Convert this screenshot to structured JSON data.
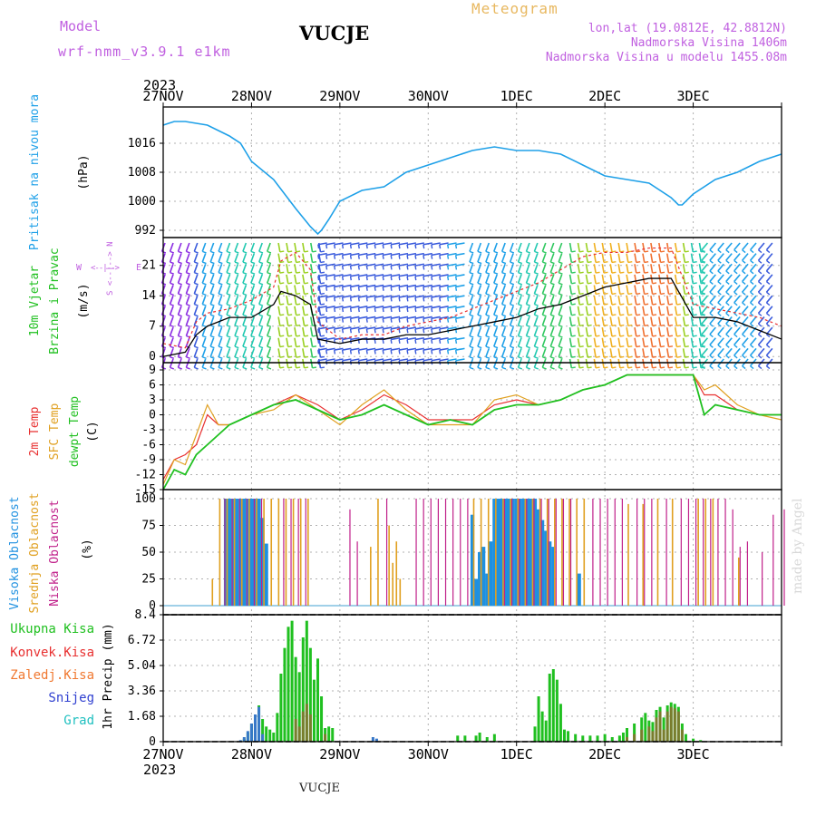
{
  "header": {
    "model_label": "Model",
    "model_name": "wrf-nmm_v3.9.1 e1km",
    "station": "VUCJE",
    "meteogram": "Meteogram",
    "lonlat": "lon,lat (19.0812E, 42.8812N)",
    "elev": "Nadmorska Visina 1406m",
    "elev_model": "Nadmorska Visina u modelu 1455.08m",
    "footer_station": "VUCJE",
    "watermark": "made by Angel"
  },
  "colors": {
    "model": "#c060e0",
    "meteogram": "#e8b860",
    "pressure": "#1ea0e8",
    "temp2m": "#e83030",
    "sfc": "#e0a020",
    "dew": "#20c020",
    "high_cloud": "#1e90e0",
    "mid_cloud": "#e0a020",
    "low_cloud": "#c0208a",
    "precip": "#20c020",
    "conv": "#e83030",
    "frozen": "#f07830",
    "snow": "#3040d0",
    "graupel": "#20c0c0"
  },
  "chart_data": [
    {
      "id": "pressure",
      "type": "line",
      "ylabel_lines": [
        "Pritisak na nivou mora"
      ],
      "unit": "(hPa)",
      "ylim": [
        990,
        1026
      ],
      "yticks": [
        "1016",
        "1008",
        "1000",
        "992"
      ],
      "year_top": "2023",
      "xticks_top": [
        "27NOV",
        "28NOV",
        "29NOV",
        "30NOV",
        "1DEC",
        "2DEC",
        "3DEC"
      ],
      "x_hours": [
        0,
        3,
        6,
        12,
        18,
        21,
        24,
        30,
        36,
        40,
        42,
        43,
        45,
        48,
        54,
        60,
        66,
        72,
        78,
        84,
        90,
        96,
        102,
        108,
        114,
        120,
        126,
        132,
        138,
        140,
        141,
        144,
        150,
        156,
        162,
        168
      ],
      "values": [
        1021,
        1022,
        1022,
        1021,
        1018,
        1016,
        1011,
        1006,
        998,
        993,
        991,
        992,
        995,
        1000,
        1003,
        1004,
        1008,
        1010,
        1012,
        1014,
        1015,
        1014,
        1014,
        1013,
        1010,
        1007,
        1006,
        1005,
        1001,
        999,
        999,
        1002,
        1006,
        1008,
        1011,
        1013
      ]
    },
    {
      "id": "wind",
      "type": "line",
      "ylabel_lines": [
        "10m Vjetar",
        "Brzina i Pravac"
      ],
      "unit": "(m/s)",
      "ylim": [
        -1,
        27
      ],
      "yticks": [
        "21",
        "14",
        "7",
        "0"
      ],
      "legend_glyphs": [
        "W",
        "<--|-->",
        "E",
        "S <--|--> N"
      ],
      "x_hours": [
        0,
        6,
        9,
        12,
        18,
        24,
        30,
        32,
        36,
        40,
        42,
        48,
        54,
        60,
        66,
        72,
        78,
        84,
        90,
        96,
        102,
        108,
        114,
        120,
        126,
        132,
        138,
        144,
        150,
        156,
        162,
        168
      ],
      "speed": [
        0,
        1,
        5,
        7,
        9,
        9,
        12,
        15,
        14,
        12,
        4,
        3,
        4,
        4,
        5,
        5,
        6,
        7,
        8,
        9,
        11,
        12,
        14,
        16,
        17,
        18,
        18,
        9,
        9,
        8,
        6,
        4
      ],
      "gust": [
        3,
        2,
        8,
        10,
        11,
        13,
        16,
        22,
        24,
        20,
        8,
        4,
        5,
        5,
        7,
        8,
        9,
        11,
        13,
        15,
        17,
        20,
        23,
        24,
        24,
        25,
        25,
        12,
        11,
        10,
        9,
        7
      ]
    },
    {
      "id": "temperature",
      "type": "line",
      "ylabel_lines": [
        "2m Temp",
        "SFC Temp",
        "dewpt Temp"
      ],
      "unit": "(C)",
      "ylim": [
        -15,
        9
      ],
      "yticks": [
        "9",
        "6",
        "3",
        "0",
        "-3",
        "-6",
        "-9",
        "-12",
        "-15"
      ],
      "x_hours": [
        0,
        3,
        6,
        9,
        12,
        15,
        18,
        21,
        24,
        30,
        36,
        42,
        48,
        54,
        60,
        66,
        72,
        78,
        84,
        90,
        96,
        102,
        108,
        114,
        120,
        126,
        132,
        138,
        144,
        147,
        150,
        156,
        162,
        168
      ],
      "series": [
        {
          "name": "2m Temp",
          "values": [
            -13,
            -9,
            -8,
            -6,
            0,
            -2,
            -2,
            -1,
            0,
            2,
            4,
            2,
            -1,
            1,
            4,
            2,
            -1,
            -1,
            -1,
            2,
            3,
            2,
            3,
            5,
            6,
            8,
            8,
            8,
            8,
            4,
            4,
            1,
            0,
            0
          ]
        },
        {
          "name": "SFC Temp",
          "values": [
            -14,
            -9,
            -10,
            -4,
            2,
            -2,
            -2,
            -1,
            0,
            1,
            4,
            1,
            -2,
            2,
            5,
            1,
            -2,
            -2,
            -2,
            3,
            4,
            2,
            3,
            5,
            6,
            8,
            8,
            8,
            8,
            5,
            6,
            2,
            0,
            -1
          ]
        },
        {
          "name": "dewpt Temp",
          "values": [
            -15,
            -11,
            -12,
            -8,
            -6,
            -4,
            -2,
            -1,
            0,
            2,
            3,
            1,
            -1,
            0,
            2,
            0,
            -2,
            -1,
            -2,
            1,
            2,
            2,
            3,
            5,
            6,
            8,
            8,
            8,
            8,
            0,
            2,
            1,
            0,
            0
          ]
        }
      ]
    },
    {
      "id": "clouds",
      "type": "bar",
      "ylabel_lines": [
        "Visoka Oblacnost",
        "Srednja Oblacnost",
        "Niska Oblacnost"
      ],
      "unit": "(%)",
      "ylim": [
        0,
        100
      ],
      "yticks": [
        "100",
        "75",
        "50",
        "25",
        "0"
      ],
      "series": [
        {
          "name": "Visoka Oblacnost",
          "x_hours": [
            17,
            18,
            19,
            20,
            21,
            22,
            23,
            24,
            25,
            26,
            27,
            28,
            60,
            84,
            85,
            86,
            87,
            88,
            89,
            90,
            91,
            92,
            93,
            94,
            95,
            96,
            97,
            98,
            99,
            100,
            101,
            102,
            103,
            104,
            105,
            106,
            113
          ],
          "values": [
            100,
            100,
            100,
            100,
            100,
            100,
            100,
            100,
            100,
            100,
            82,
            58,
            0,
            85,
            25,
            50,
            55,
            30,
            60,
            100,
            100,
            100,
            100,
            100,
            100,
            100,
            100,
            100,
            100,
            100,
            100,
            90,
            80,
            70,
            60,
            55,
            30
          ]
        },
        {
          "name": "Srednja Oblacnost",
          "x_hours": [
            13,
            15,
            17,
            19,
            21,
            23,
            25,
            27,
            29,
            31,
            33,
            35,
            37,
            39,
            56,
            58,
            61,
            62,
            63,
            64,
            84,
            86,
            88,
            90,
            92,
            94,
            96,
            98,
            100,
            102,
            104,
            106,
            108,
            110,
            112,
            114,
            126,
            130,
            134,
            138,
            145,
            147,
            149,
            156
          ],
          "values": [
            25,
            100,
            100,
            100,
            100,
            100,
            100,
            100,
            100,
            100,
            100,
            100,
            100,
            100,
            55,
            100,
            75,
            40,
            60,
            25,
            100,
            100,
            100,
            100,
            100,
            100,
            100,
            100,
            100,
            100,
            100,
            100,
            100,
            100,
            100,
            100,
            95,
            95,
            100,
            100,
            100,
            100,
            100,
            45
          ]
        },
        {
          "name": "Niska Oblacnost",
          "x_hours": [
            16,
            18,
            20,
            22,
            24,
            26,
            32,
            34,
            36,
            38,
            50,
            52,
            60,
            68,
            70,
            72,
            74,
            76,
            78,
            80,
            82,
            92,
            94,
            96,
            98,
            100,
            102,
            104,
            106,
            108,
            110,
            116,
            118,
            120,
            122,
            124,
            128,
            130,
            132,
            136,
            140,
            142,
            144,
            146,
            148,
            150,
            152,
            154,
            156,
            158,
            162,
            165,
            168
          ],
          "values": [
            100,
            100,
            100,
            100,
            100,
            100,
            100,
            100,
            100,
            100,
            90,
            60,
            100,
            100,
            100,
            100,
            100,
            100,
            100,
            100,
            100,
            100,
            100,
            100,
            100,
            100,
            100,
            100,
            100,
            100,
            100,
            100,
            100,
            100,
            100,
            100,
            100,
            100,
            100,
            100,
            100,
            100,
            100,
            100,
            100,
            100,
            100,
            90,
            55,
            60,
            50,
            85,
            90
          ]
        }
      ]
    },
    {
      "id": "precip",
      "type": "bar",
      "ylabel_lines": [
        "1hr Precip (mm)"
      ],
      "legend": [
        "Ukupna Kisa",
        "Konvek.Kisa",
        "Zaledj.Kisa",
        "Snijeg",
        "Grad"
      ],
      "ylim": [
        0,
        8.4
      ],
      "yticks": [
        "8.4",
        "6.72",
        "5.04",
        "3.36",
        "1.68",
        "0"
      ],
      "year_bottom": "2023",
      "xticks_bottom": [
        "27NOV",
        "28NOV",
        "29NOV",
        "30NOV",
        "1DEC",
        "2DEC",
        "3DEC"
      ],
      "total": {
        "x_hours": [
          22,
          23,
          24,
          25,
          26,
          27,
          28,
          29,
          30,
          31,
          32,
          33,
          34,
          35,
          36,
          37,
          38,
          39,
          40,
          41,
          42,
          43,
          44,
          45,
          46,
          80,
          82,
          85,
          86,
          88,
          90,
          101,
          102,
          103,
          104,
          105,
          106,
          107,
          108,
          109,
          110,
          112,
          114,
          116,
          118,
          120,
          122,
          124,
          125,
          126,
          128,
          130,
          131,
          132,
          133,
          134,
          135,
          136,
          137,
          138,
          139,
          140,
          141,
          142,
          144,
          146
        ],
        "values": [
          0.2,
          0.6,
          1.2,
          1.8,
          2.4,
          1.5,
          1.0,
          0.8,
          0.6,
          1.9,
          4.5,
          6.2,
          7.6,
          8.0,
          5.6,
          4.6,
          6.9,
          8.0,
          6.2,
          4.1,
          5.5,
          3.0,
          0.9,
          1.0,
          0.9,
          0.4,
          0.4,
          0.4,
          0.6,
          0.3,
          0.5,
          1.0,
          3.0,
          2.0,
          1.4,
          4.5,
          4.8,
          4.1,
          2.5,
          0.8,
          0.7,
          0.5,
          0.4,
          0.4,
          0.4,
          0.5,
          0.3,
          0.4,
          0.6,
          0.9,
          1.2,
          1.6,
          1.9,
          1.4,
          1.3,
          2.1,
          2.3,
          1.6,
          2.4,
          2.6,
          2.5,
          2.3,
          1.2,
          0.5,
          0.2,
          0.1
        ]
      },
      "convective": {
        "x_hours": [
          36,
          37,
          38,
          39,
          40,
          44,
          126,
          128,
          130,
          132,
          133,
          134,
          135,
          136,
          137,
          138,
          139,
          140,
          141
        ],
        "values": [
          1.5,
          1.0,
          2.0,
          2.5,
          1.8,
          0.5,
          0.3,
          0.5,
          0.8,
          1.0,
          0.7,
          1.6,
          2.0,
          0.8,
          2.0,
          2.3,
          2.2,
          2.0,
          0.8
        ]
      },
      "snow": {
        "x_hours": [
          21,
          22,
          23,
          24,
          25,
          26,
          27,
          57,
          58
        ],
        "values": [
          0.1,
          0.3,
          0.7,
          1.2,
          1.8,
          2.3,
          0.5,
          0.3,
          0.2
        ]
      }
    }
  ]
}
